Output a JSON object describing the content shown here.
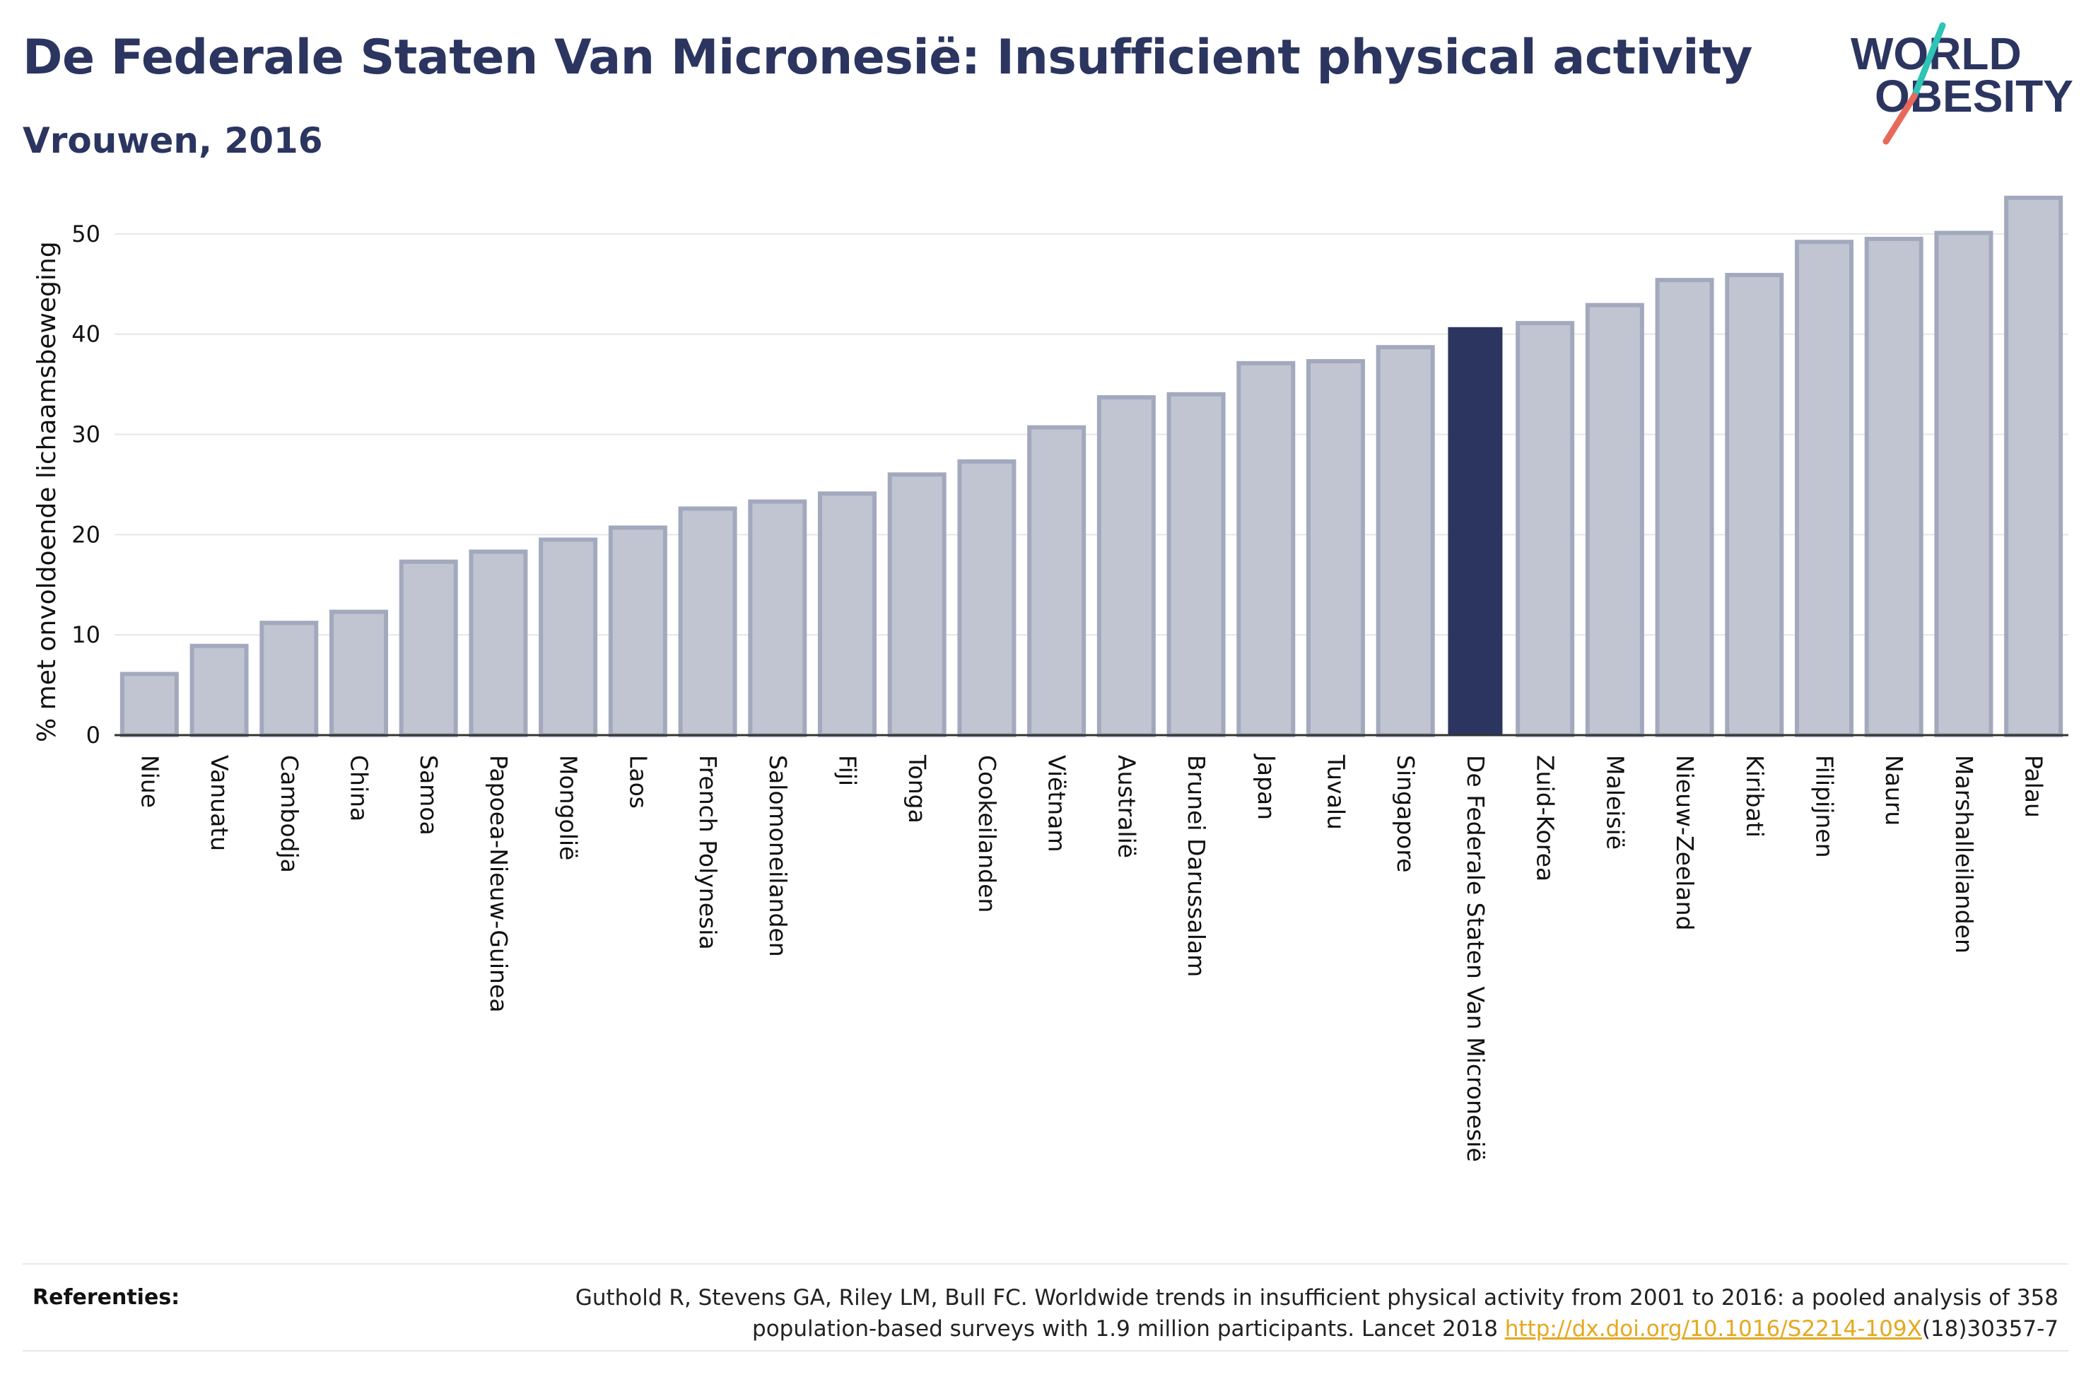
{
  "title": "De Federale Staten Van Micronesië: Insufficient physical activity",
  "subtitle": "Vrouwen, 2016",
  "logo": {
    "line1": "WORLD",
    "line2": "OBESITY"
  },
  "references": {
    "label": "Referenties:",
    "text_line1": "Guthold R, Stevens GA, Riley LM, Bull FC. Worldwide trends in insufficient physical activity from 2001 to 2016: a pooled analysis of 358",
    "text_line2_prefix": "population-based surveys with 1.9 million participants. Lancet 2018 ",
    "link": "http://dx.doi.org/10.1016/S2214-109X",
    "text_line2_suffix": "(18)30357-7"
  },
  "colors": {
    "bar_fill": "#c1c5d2",
    "bar_stroke": "#a3a9bd",
    "highlight": "#2b3560",
    "grid": "#e6e6ea",
    "text": "#111111",
    "logo_teal": "#2ec4b6",
    "logo_red": "#e8685a"
  },
  "chart_data": {
    "type": "bar",
    "ylabel": "% met onvoldoende lichaamsbeweging",
    "ylim": [
      0,
      55
    ],
    "yticks": [
      0,
      10,
      20,
      30,
      40,
      50
    ],
    "highlight": "De Federale Staten Van Micronesië",
    "categories": [
      "Niue",
      "Vanuatu",
      "Cambodja",
      "China",
      "Samoa",
      "Papoea-Nieuw-Guinea",
      "Mongolië",
      "Laos",
      "French Polynesia",
      "Salomoneilanden",
      "Fiji",
      "Tonga",
      "Cookeilanden",
      "Viëtnam",
      "Australië",
      "Brunei Darussalam",
      "Japan",
      "Tuvalu",
      "Singapore",
      "De Federale Staten Van Micronesië",
      "Zuid-Korea",
      "Maleisië",
      "Nieuw-Zeeland",
      "Kiribati",
      "Filipijnen",
      "Nauru",
      "Marshalleilanden",
      "Palau"
    ],
    "values": [
      6.1,
      8.9,
      11.2,
      12.3,
      17.3,
      18.3,
      19.5,
      20.7,
      22.6,
      23.3,
      24.1,
      26.0,
      27.3,
      30.7,
      33.7,
      34.0,
      37.1,
      37.3,
      38.7,
      40.7,
      41.1,
      42.9,
      45.4,
      45.9,
      49.2,
      49.5,
      50.1,
      53.6
    ]
  }
}
